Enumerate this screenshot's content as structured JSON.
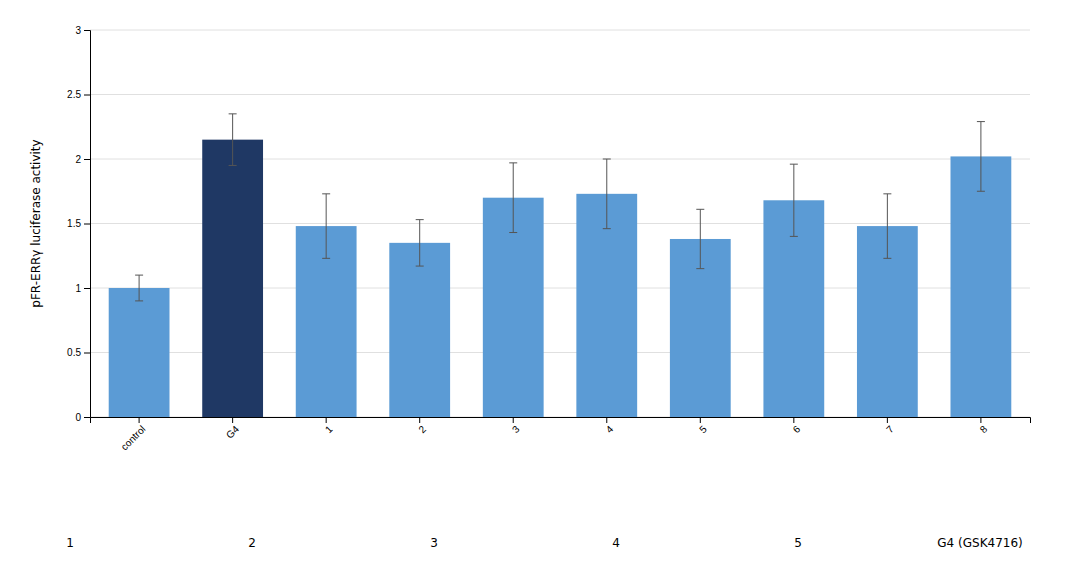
{
  "chart_data": {
    "type": "bar",
    "categories": [
      "control",
      "G4",
      "1",
      "2",
      "3",
      "4",
      "5",
      "6",
      "7",
      "8"
    ],
    "values": [
      1.0,
      2.15,
      1.48,
      1.35,
      1.7,
      1.73,
      1.38,
      1.68,
      1.48,
      2.02
    ],
    "errors": [
      0.1,
      0.2,
      0.25,
      0.18,
      0.27,
      0.27,
      0.23,
      0.28,
      0.25,
      0.27
    ],
    "colors": [
      "#5b9bd5",
      "#1f3864",
      "#5b9bd5",
      "#5b9bd5",
      "#5b9bd5",
      "#5b9bd5",
      "#5b9bd5",
      "#5b9bd5",
      "#5b9bd5",
      "#5b9bd5"
    ],
    "ylabel": "pFR-ERRγ luciferase activity",
    "ylim": [
      0,
      3
    ],
    "yticks": [
      0,
      0.5,
      1,
      1.5,
      2,
      2.5,
      3
    ],
    "grid": true,
    "annotations": [
      "1",
      "2",
      "3",
      "4",
      "5",
      "G4 (GSK4716)"
    ]
  }
}
